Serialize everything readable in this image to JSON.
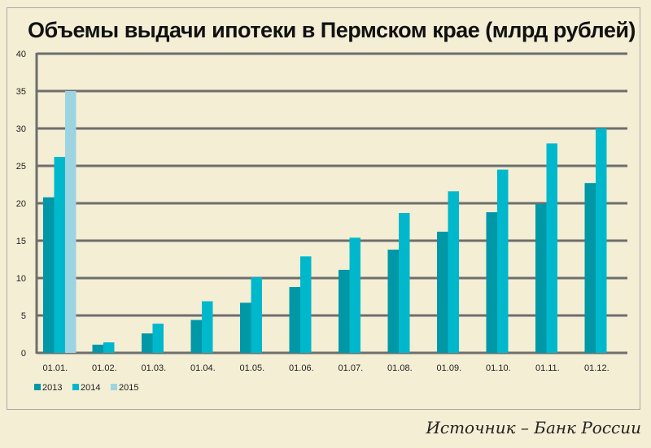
{
  "chart_data": {
    "type": "bar",
    "title": "Объемы выдачи ипотеки в Пермском крае (млрд рублей)",
    "xlabel": "",
    "ylabel": "",
    "ylim": [
      0,
      40
    ],
    "yticks": [
      0,
      5,
      10,
      15,
      20,
      25,
      30,
      35,
      40
    ],
    "grid": true,
    "legend": "bottom-left",
    "categories": [
      "01.01.",
      "01.02.",
      "01.03.",
      "01.04.",
      "01.05.",
      "01.06.",
      "01.07.",
      "01.08.",
      "01.09.",
      "01.10.",
      "01.11.",
      "01.12."
    ],
    "series": [
      {
        "name": "2013",
        "color": "#0097a7",
        "values": [
          20.8,
          1.1,
          2.6,
          4.4,
          6.7,
          8.8,
          11.1,
          13.8,
          16.2,
          18.8,
          19.9,
          22.7
        ]
      },
      {
        "name": "2014",
        "color": "#00b8cc",
        "values": [
          26.2,
          1.4,
          3.9,
          6.9,
          10.1,
          12.9,
          15.4,
          18.7,
          21.6,
          24.5,
          28.0,
          30.0
        ]
      },
      {
        "name": "2015",
        "color": "#9dd4e2",
        "values": [
          35.0,
          null,
          null,
          null,
          null,
          null,
          null,
          null,
          null,
          null,
          null,
          null
        ]
      }
    ]
  },
  "source": "Источник – Банк России"
}
